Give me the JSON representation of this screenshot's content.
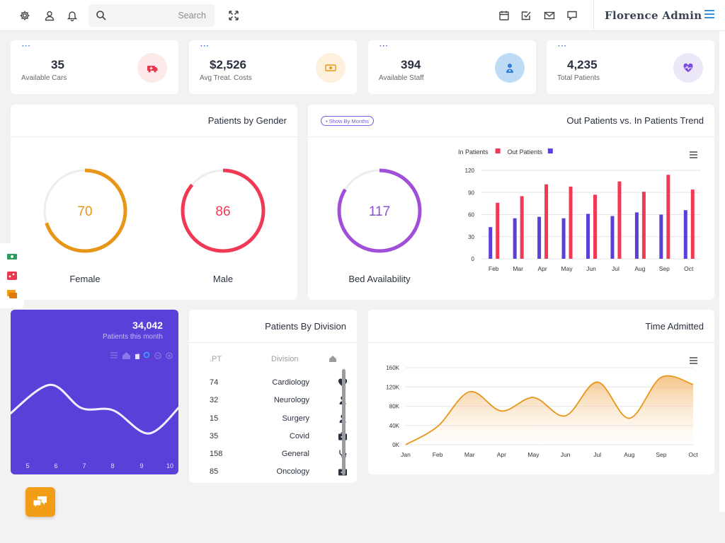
{
  "header": {
    "search_placeholder": "Search",
    "brand": "Florence Admin",
    "left_icons": [
      "settings-icon",
      "user-icon",
      "bell-icon"
    ],
    "right_icons": [
      "calendar-icon",
      "checkbox-icon",
      "mail-icon",
      "chat-icon"
    ]
  },
  "stats": [
    {
      "value": "35",
      "label": "Available Cars",
      "icon": "ambulance-icon",
      "color": "#e8374e",
      "bg": "#fde8ea"
    },
    {
      "value": "$2,526",
      "label": "Avg Treat. Costs",
      "icon": "money-icon",
      "color": "#e89a1a",
      "bg": "#fdf0dc"
    },
    {
      "value": "394",
      "label": "Available Staff",
      "icon": "staff-icon",
      "color": "#2f7fd8",
      "bg": "#bfdcf7"
    },
    {
      "value": "4,235",
      "label": "Total Patients",
      "icon": "heartbeat-icon",
      "color": "#7c4ce0",
      "bg": "#ece8f8"
    }
  ],
  "gender": {
    "title": "Patients by Gender",
    "female": {
      "value": "70",
      "label": "Female",
      "color": "#e8961a"
    },
    "male": {
      "value": "86",
      "label": "Male",
      "color": "#f03a55"
    }
  },
  "trend": {
    "title": "Out Patients vs. In Patients Trend",
    "pill": "• Show By Months",
    "bed": {
      "value": "117",
      "label": "Bed Availability",
      "color": "#a14fd8"
    }
  },
  "chart_data": [
    {
      "type": "bar",
      "categories": [
        "Feb",
        "Mar",
        "Apr",
        "May",
        "Jun",
        "Jul",
        "Aug",
        "Sep",
        "Oct"
      ],
      "series": [
        {
          "name": "In Patients",
          "color": "#f03a55",
          "values": [
            76,
            85,
            101,
            98,
            87,
            105,
            91,
            114,
            94
          ]
        },
        {
          "name": "Out Patients",
          "color": "#5a3fd9",
          "values": [
            43,
            55,
            57,
            55,
            61,
            58,
            63,
            60,
            66
          ]
        }
      ],
      "yticks": [
        0,
        30,
        60,
        90,
        120
      ],
      "ylim": [
        0,
        120
      ],
      "legend": "top-left",
      "grid": true
    },
    {
      "type": "area",
      "title": "Time Admitted",
      "categories": [
        "Jan",
        "Feb",
        "Mar",
        "Apr",
        "May",
        "Jun",
        "Jul",
        "Aug",
        "Sep",
        "Oct"
      ],
      "series": [
        {
          "color": "#e8961a",
          "values": [
            0,
            38000,
            110000,
            70000,
            98000,
            60000,
            130000,
            55000,
            140000,
            125000
          ]
        }
      ],
      "yticks": [
        "0K",
        "40K",
        "80K",
        "120K",
        "160K"
      ],
      "ylim": [
        0,
        160000
      ],
      "grid": true
    },
    {
      "type": "line",
      "title": "34,042",
      "subtitle": "Patients this month",
      "categories": [
        "5",
        "6",
        "7",
        "8",
        "9",
        "10"
      ],
      "series": [
        {
          "color": "#f2eeff",
          "values": [
            55,
            95,
            65,
            62,
            32,
            68
          ]
        }
      ]
    }
  ],
  "division": {
    "title": "Patients By Division",
    "col_pt": ".PT",
    "col_division": "Division",
    "rows": [
      {
        "pt": "74",
        "name": "Cardiology",
        "icon": "heart-icon"
      },
      {
        "pt": "32",
        "name": "Neurology",
        "icon": "person-icon"
      },
      {
        "pt": "15",
        "name": "Surgery",
        "icon": "surgeon-icon"
      },
      {
        "pt": "35",
        "name": "Covid",
        "icon": "medkit-icon"
      },
      {
        "pt": "158",
        "name": "General",
        "icon": "stethoscope-icon"
      },
      {
        "pt": "85",
        "name": "Oncology",
        "icon": "medkit-icon"
      }
    ]
  },
  "time_admitted": {
    "title": "Time Admitted"
  },
  "monthly": {
    "value": "34,042",
    "label": "Patients this month"
  }
}
